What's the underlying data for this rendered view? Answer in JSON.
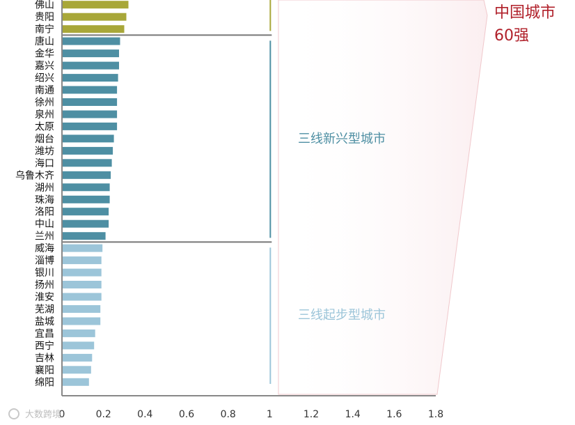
{
  "chart_data": {
    "type": "bar",
    "orientation": "horizontal",
    "categories": [
      "佛山",
      "贵阳",
      "南宁",
      "唐山",
      "金华",
      "嘉兴",
      "绍兴",
      "南通",
      "徐州",
      "泉州",
      "太原",
      "烟台",
      "潍坊",
      "海口",
      "乌鲁木齐",
      "湖州",
      "珠海",
      "洛阳",
      "中山",
      "兰州",
      "威海",
      "淄博",
      "银川",
      "扬州",
      "淮安",
      "芜湖",
      "盐城",
      "宜昌",
      "西宁",
      "吉林",
      "襄阳",
      "绵阳"
    ],
    "values": [
      0.32,
      0.31,
      0.3,
      0.28,
      0.275,
      0.275,
      0.27,
      0.265,
      0.265,
      0.265,
      0.265,
      0.25,
      0.245,
      0.24,
      0.235,
      0.23,
      0.23,
      0.225,
      0.225,
      0.21,
      0.195,
      0.19,
      0.19,
      0.19,
      0.19,
      0.185,
      0.185,
      0.16,
      0.155,
      0.145,
      0.14,
      0.13
    ],
    "groups": [
      {
        "label": "",
        "start": 0,
        "end": 2,
        "color": "#a8a739"
      },
      {
        "label": "三线新兴型城市",
        "start": 3,
        "end": 19,
        "color": "#4e8fa3"
      },
      {
        "label": "三线起步型城市",
        "start": 20,
        "end": 31,
        "color": "#9cc5d9"
      }
    ],
    "xlim": [
      0,
      1.8
    ],
    "xticks": [
      "0",
      "0.2",
      "0.4",
      "0.6",
      "0.8",
      "1",
      "1.2",
      "1.4",
      "1.6",
      "1.8"
    ],
    "panel_label_line1": "中国城市",
    "panel_label_line2": "60强",
    "panel_color": "#b0202a",
    "panel_fill": "#fbeef0",
    "grid": false,
    "legend": "none"
  },
  "watermark": "大数跨境"
}
